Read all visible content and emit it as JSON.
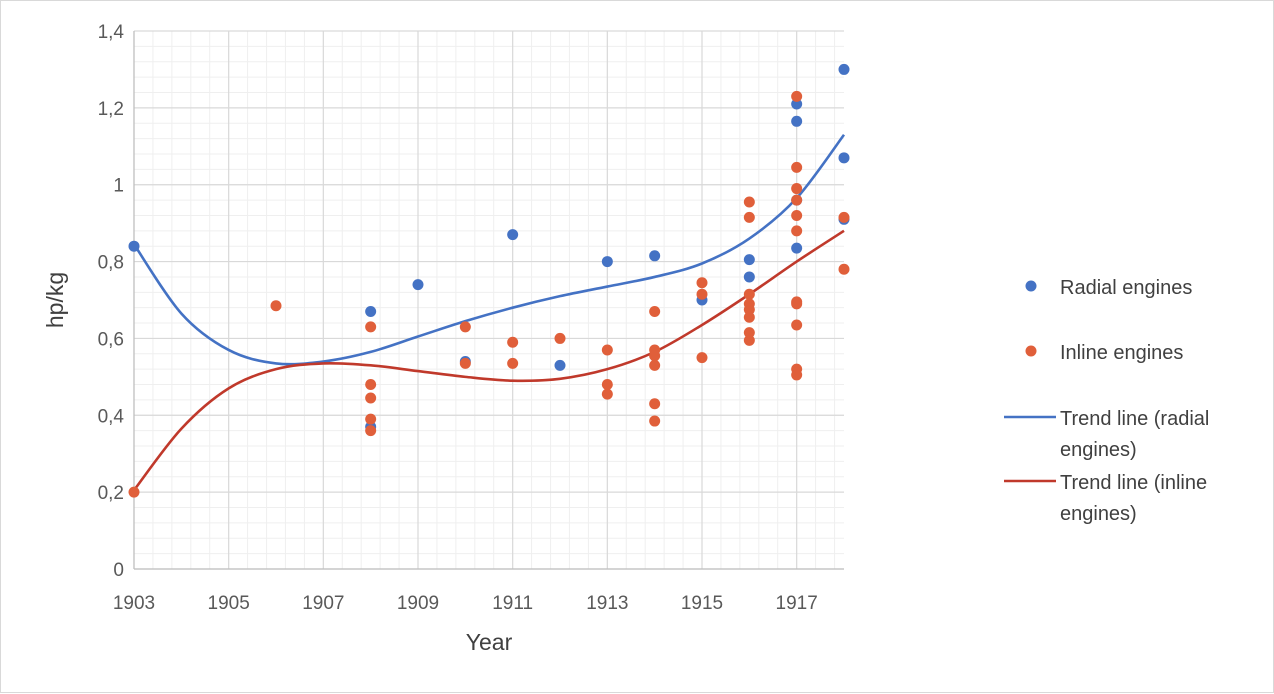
{
  "chart_data": {
    "type": "scatter",
    "title": "",
    "xlabel": "Year",
    "ylabel": "hp/kg",
    "xlim": [
      1903,
      1918
    ],
    "ylim": [
      0,
      1.4
    ],
    "x_ticks": [
      1903,
      1905,
      1907,
      1909,
      1911,
      1913,
      1915,
      1917
    ],
    "x_tick_labels": [
      "1903",
      "1905",
      "1907",
      "1909",
      "1911",
      "1913",
      "1915",
      "1917"
    ],
    "y_ticks": [
      0,
      0.2,
      0.4,
      0.6,
      0.8,
      1.0,
      1.2,
      1.4
    ],
    "y_tick_labels": [
      "0",
      "0,2",
      "0,4",
      "0,6",
      "0,8",
      "1",
      "1,2",
      "1,4"
    ],
    "grid": true,
    "legend_position": "right",
    "series": [
      {
        "name": "Radial engines",
        "kind": "scatter",
        "color": "#4472c4",
        "points": [
          [
            1903,
            0.84
          ],
          [
            1908,
            0.67
          ],
          [
            1908,
            0.37
          ],
          [
            1909,
            0.74
          ],
          [
            1910,
            0.54
          ],
          [
            1911,
            0.87
          ],
          [
            1912,
            0.53
          ],
          [
            1913,
            0.8
          ],
          [
            1914,
            0.815
          ],
          [
            1915,
            0.7
          ],
          [
            1916,
            0.805
          ],
          [
            1916,
            0.76
          ],
          [
            1917,
            1.21
          ],
          [
            1917,
            1.165
          ],
          [
            1917,
            0.835
          ],
          [
            1917,
            0.96
          ],
          [
            1918,
            1.3
          ],
          [
            1918,
            1.07
          ],
          [
            1918,
            0.91
          ]
        ]
      },
      {
        "name": "Inline engines",
        "kind": "scatter",
        "color": "#e05f3a",
        "points": [
          [
            1903,
            0.2
          ],
          [
            1906,
            0.685
          ],
          [
            1908,
            0.63
          ],
          [
            1908,
            0.48
          ],
          [
            1908,
            0.445
          ],
          [
            1908,
            0.39
          ],
          [
            1908,
            0.36
          ],
          [
            1910,
            0.63
          ],
          [
            1910,
            0.535
          ],
          [
            1911,
            0.59
          ],
          [
            1911,
            0.535
          ],
          [
            1912,
            0.6
          ],
          [
            1913,
            0.57
          ],
          [
            1913,
            0.48
          ],
          [
            1913,
            0.455
          ],
          [
            1914,
            0.67
          ],
          [
            1914,
            0.57
          ],
          [
            1914,
            0.555
          ],
          [
            1914,
            0.53
          ],
          [
            1914,
            0.43
          ],
          [
            1914,
            0.385
          ],
          [
            1915,
            0.745
          ],
          [
            1915,
            0.715
          ],
          [
            1915,
            0.55
          ],
          [
            1916,
            0.955
          ],
          [
            1916,
            0.915
          ],
          [
            1916,
            0.715
          ],
          [
            1916,
            0.69
          ],
          [
            1916,
            0.675
          ],
          [
            1916,
            0.655
          ],
          [
            1916,
            0.615
          ],
          [
            1916,
            0.595
          ],
          [
            1917,
            1.23
          ],
          [
            1917,
            1.045
          ],
          [
            1917,
            0.99
          ],
          [
            1917,
            0.96
          ],
          [
            1917,
            0.92
          ],
          [
            1917,
            0.88
          ],
          [
            1917,
            0.695
          ],
          [
            1917,
            0.69
          ],
          [
            1917,
            0.635
          ],
          [
            1917,
            0.52
          ],
          [
            1917,
            0.505
          ],
          [
            1918,
            0.915
          ],
          [
            1918,
            0.78
          ]
        ]
      },
      {
        "name": "Trend line (radial engines)",
        "kind": "line",
        "color": "#4472c4",
        "points": [
          [
            1903,
            0.845
          ],
          [
            1904,
            0.665
          ],
          [
            1905,
            0.57
          ],
          [
            1906,
            0.535
          ],
          [
            1907,
            0.54
          ],
          [
            1908,
            0.565
          ],
          [
            1909,
            0.605
          ],
          [
            1910,
            0.645
          ],
          [
            1911,
            0.68
          ],
          [
            1912,
            0.71
          ],
          [
            1913,
            0.735
          ],
          [
            1914,
            0.76
          ],
          [
            1915,
            0.795
          ],
          [
            1916,
            0.86
          ],
          [
            1917,
            0.965
          ],
          [
            1918,
            1.13
          ]
        ]
      },
      {
        "name": "Trend line (inline engines)",
        "kind": "line",
        "color": "#c0392b",
        "points": [
          [
            1903,
            0.205
          ],
          [
            1904,
            0.365
          ],
          [
            1905,
            0.47
          ],
          [
            1906,
            0.52
          ],
          [
            1907,
            0.535
          ],
          [
            1908,
            0.53
          ],
          [
            1909,
            0.515
          ],
          [
            1910,
            0.5
          ],
          [
            1911,
            0.49
          ],
          [
            1912,
            0.495
          ],
          [
            1913,
            0.52
          ],
          [
            1914,
            0.565
          ],
          [
            1915,
            0.635
          ],
          [
            1916,
            0.715
          ],
          [
            1917,
            0.8
          ],
          [
            1918,
            0.88
          ]
        ]
      }
    ],
    "legend": [
      {
        "label": "Radial engines",
        "lines": [
          "Radial engines"
        ],
        "marker": "dot",
        "color": "#4472c4"
      },
      {
        "label": "Inline engines",
        "lines": [
          "Inline engines"
        ],
        "marker": "dot",
        "color": "#e05f3a"
      },
      {
        "label": "Trend line (radial engines)",
        "lines": [
          "Trend line (radial",
          "engines)"
        ],
        "marker": "line",
        "color": "#4472c4"
      },
      {
        "label": "Trend line (inline engines)",
        "lines": [
          "Trend line (inline",
          "engines)"
        ],
        "marker": "line",
        "color": "#c0392b"
      }
    ]
  }
}
